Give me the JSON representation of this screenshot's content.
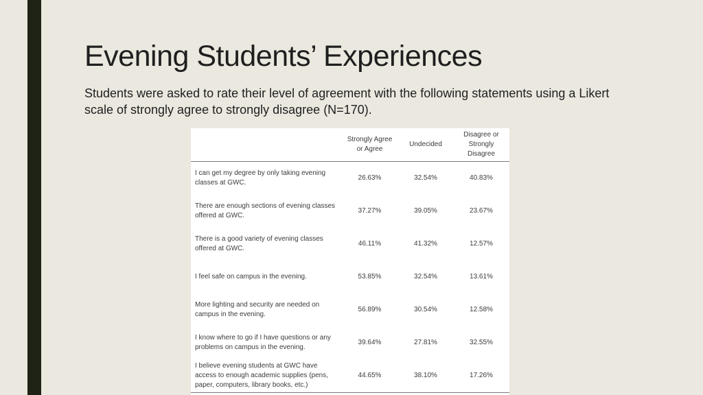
{
  "slide": {
    "title": "Evening Students’ Experiences",
    "subtitle": "Students were asked to rate their level of agreement with the following statements using a Likert scale of strongly agree to strongly disagree (N=170)."
  },
  "table": {
    "headers": [
      "",
      "Strongly Agree or Agree",
      "Undecided",
      "Disagree or Strongly Disagree"
    ],
    "rows": [
      {
        "statement": "I can get my degree by only taking evening classes at GWC.",
        "agree": "26.63%",
        "undecided": "32.54%",
        "disagree": "40.83%"
      },
      {
        "statement": "There are enough sections of evening classes offered at GWC.",
        "agree": "37.27%",
        "undecided": "39.05%",
        "disagree": "23.67%"
      },
      {
        "statement": "There is a good variety of evening classes offered at GWC.",
        "agree": "46.11%",
        "undecided": "41.32%",
        "disagree": "12.57%"
      },
      {
        "statement": "I feel safe on campus in the evening.",
        "agree": "53.85%",
        "undecided": "32.54%",
        "disagree": "13.61%"
      },
      {
        "statement": "More lighting and security are needed on campus in the evening.",
        "agree": "56.89%",
        "undecided": "30.54%",
        "disagree": "12.58%"
      },
      {
        "statement": "I know where to go if I have questions or any problems on campus in the evening.",
        "agree": "39.64%",
        "undecided": "27.81%",
        "disagree": "32.55%"
      },
      {
        "statement": "I believe evening students at GWC have access to enough academic supplies (pens, paper, computers, library books, etc.)",
        "agree": "44.65%",
        "undecided": "38.10%",
        "disagree": "17.26%"
      }
    ]
  },
  "colors": {
    "background": "#ebe8df",
    "accent_bar": "#1e2316",
    "table_background": "#ffffff",
    "text": "#1f1f1f"
  }
}
